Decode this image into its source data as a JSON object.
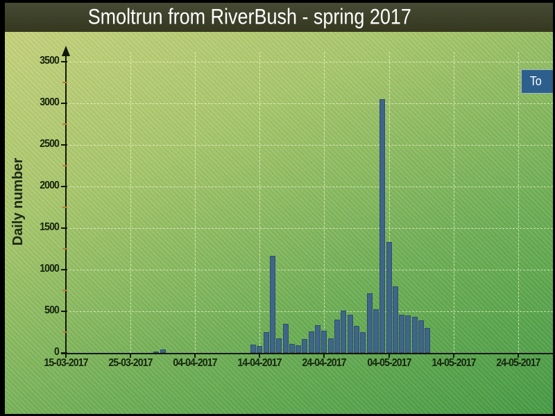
{
  "window": {
    "title": "Smoltrun from RiverBush - spring 2017"
  },
  "legend": {
    "label": "To",
    "note_visible_state": "clipped at right edge of image",
    "background_color": "#2d5f8c",
    "text_color": "#ffffff"
  },
  "colors": {
    "bar_fill": "#3f6589",
    "bar_edge": "#2e4f6e",
    "plot_gradient_top": "#c6d27c",
    "plot_gradient_bottom": "#479c46",
    "title_bar": "#3b3e2b",
    "title_text": "#ffffff",
    "axis": "#12160d",
    "minor_tick": "#c07a38",
    "gridline": "#f5ffd7"
  },
  "chart_data": {
    "type": "bar",
    "title": "Smoltrun from RiverBush - spring 2017",
    "xlabel": "",
    "ylabel": "Daily number",
    "ylim": [
      0,
      3500
    ],
    "y_major_step": 500,
    "y_minor_step": 250,
    "grid": true,
    "legend_position": "right edge (clipped)",
    "x_axis_origin_date": "15-03-2017",
    "x_tick_labels": [
      "15-03-2017",
      "25-03-2017",
      "04-04-2017",
      "14-04-2017",
      "24-04-2017",
      "04-05-2017",
      "14-05-2017",
      "24-05-2017"
    ],
    "x_tick_day_offsets": [
      0,
      10,
      20,
      30,
      40,
      50,
      60,
      70
    ],
    "dates": [
      "29-03-2017",
      "30-03-2017",
      "13-04-2017",
      "14-04-2017",
      "15-04-2017",
      "16-04-2017",
      "17-04-2017",
      "18-04-2017",
      "19-04-2017",
      "20-04-2017",
      "21-04-2017",
      "22-04-2017",
      "23-04-2017",
      "24-04-2017",
      "25-04-2017",
      "26-04-2017",
      "27-04-2017",
      "28-04-2017",
      "29-04-2017",
      "30-04-2017",
      "01-05-2017",
      "02-05-2017",
      "03-05-2017",
      "04-05-2017",
      "05-05-2017",
      "06-05-2017",
      "07-05-2017",
      "08-05-2017",
      "09-05-2017",
      "10-05-2017"
    ],
    "values": [
      20,
      40,
      100,
      85,
      250,
      1170,
      175,
      350,
      110,
      90,
      165,
      260,
      335,
      270,
      175,
      400,
      510,
      460,
      325,
      250,
      720,
      525,
      3050,
      1330,
      800,
      460,
      450,
      430,
      390,
      300
    ]
  }
}
